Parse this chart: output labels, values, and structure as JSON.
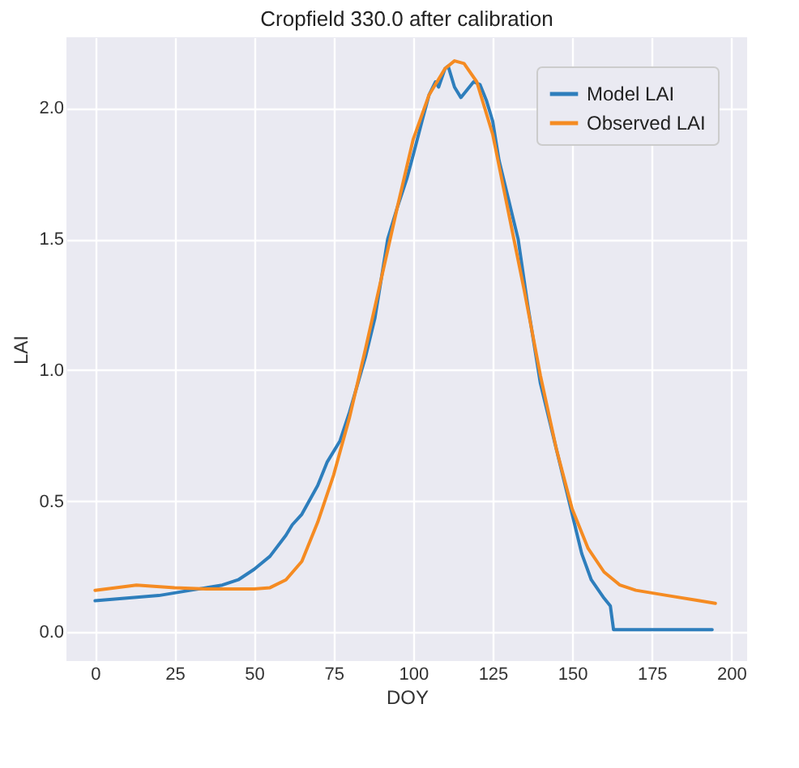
{
  "chart_data": {
    "type": "line",
    "title": "Cropfield 330.0 after calibration",
    "xlabel": "DOY",
    "ylabel": "LAI",
    "xlim": [
      -9,
      205
    ],
    "ylim": [
      -0.11,
      2.27
    ],
    "xticks": [
      0,
      25,
      50,
      75,
      100,
      125,
      150,
      175,
      200
    ],
    "yticks": [
      {
        "value": 0,
        "label": "0.0"
      },
      0.5,
      {
        "value": 1,
        "label": "1.0"
      },
      1.5,
      {
        "value": 2,
        "label": "2.0"
      }
    ],
    "grid": true,
    "legend": "top right",
    "line_style": "solid",
    "marker": "none",
    "series": [
      {
        "name": "Model LAI",
        "color": "#2e7ebc",
        "x": [
          0,
          10,
          20,
          30,
          40,
          45,
          50,
          55,
          60,
          62,
          65,
          70,
          73,
          77,
          80,
          85,
          88,
          90,
          92,
          95,
          98,
          100,
          103,
          105,
          107,
          108,
          110,
          111,
          113,
          115,
          117,
          119,
          121,
          123,
          125,
          127,
          130,
          133,
          136,
          140,
          145,
          150,
          153,
          156,
          160,
          162,
          163,
          170,
          194
        ],
        "values": [
          0.12,
          0.13,
          0.14,
          0.16,
          0.18,
          0.2,
          0.24,
          0.29,
          0.37,
          0.41,
          0.45,
          0.56,
          0.65,
          0.73,
          0.84,
          1.05,
          1.2,
          1.35,
          1.5,
          1.62,
          1.73,
          1.82,
          1.96,
          2.05,
          2.1,
          2.08,
          2.15,
          2.16,
          2.08,
          2.04,
          2.07,
          2.1,
          2.09,
          2.03,
          1.95,
          1.8,
          1.65,
          1.5,
          1.25,
          0.95,
          0.7,
          0.45,
          0.3,
          0.2,
          0.13,
          0.1,
          0.01,
          0.01,
          0.01
        ]
      },
      {
        "name": "Observed LAI",
        "color": "#f58b22",
        "x": [
          0,
          13,
          25,
          35,
          50,
          55,
          60,
          65,
          70,
          75,
          80,
          85,
          90,
          95,
          100,
          105,
          110,
          113,
          116,
          120,
          125,
          130,
          135,
          140,
          145,
          150,
          155,
          160,
          165,
          170,
          180,
          190,
          195
        ],
        "values": [
          0.16,
          0.18,
          0.17,
          0.165,
          0.165,
          0.17,
          0.2,
          0.27,
          0.42,
          0.6,
          0.82,
          1.08,
          1.35,
          1.62,
          1.88,
          2.05,
          2.15,
          2.18,
          2.17,
          2.1,
          1.9,
          1.6,
          1.3,
          0.98,
          0.7,
          0.47,
          0.32,
          0.23,
          0.18,
          0.16,
          0.14,
          0.12,
          0.11
        ]
      }
    ]
  }
}
